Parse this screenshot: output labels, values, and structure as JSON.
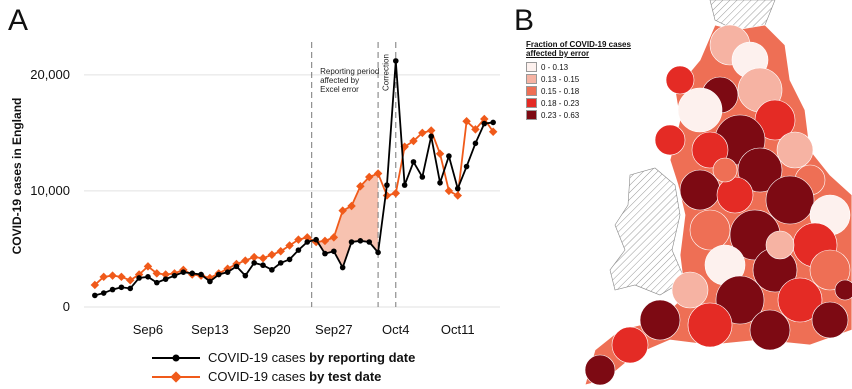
{
  "panel_a": {
    "letter": "A"
  },
  "panel_b": {
    "letter": "B"
  },
  "colors": {
    "reporting": "#000000",
    "test": "#f05a1a",
    "shade": "#f7c2b0",
    "grid": "#e2e2e2"
  },
  "chart_data": {
    "type": "line",
    "ylabel": "COVID-19 cases in England",
    "y_ticks": [
      "0",
      "10,000",
      "20,000"
    ],
    "ylim": [
      0,
      23000
    ],
    "x_ticks": [
      {
        "label": "Sep6",
        "day": 6
      },
      {
        "label": "Sep13",
        "day": 13
      },
      {
        "label": "Sep20",
        "day": 20
      },
      {
        "label": "Sep27",
        "day": 27
      },
      {
        "label": "Oct4",
        "day": 34
      },
      {
        "label": "Oct11",
        "day": 41
      }
    ],
    "x_range_days": [
      -1,
      46
    ],
    "grid": "horizontal",
    "annotations": [
      {
        "text": [
          "Reporting period",
          "affected by",
          "Excel error"
        ],
        "day": 25
      },
      {
        "text": [
          "Correction"
        ],
        "day": 32
      }
    ],
    "vertical_lines_days": [
      24.5,
      32,
      34
    ],
    "series": [
      {
        "name": "COVID-19 cases by reporting date",
        "x_days": [
          0,
          1,
          2,
          3,
          4,
          5,
          6,
          7,
          8,
          9,
          10,
          11,
          12,
          13,
          14,
          15,
          16,
          17,
          18,
          19,
          20,
          21,
          22,
          23,
          24,
          25,
          26,
          27,
          28,
          29,
          30,
          31,
          32,
          33,
          34,
          35,
          36,
          37,
          38,
          39,
          40,
          41,
          42,
          43,
          44,
          45
        ],
        "values": [
          1000,
          1200,
          1500,
          1700,
          1600,
          2500,
          2600,
          2100,
          2400,
          2700,
          3000,
          2900,
          2800,
          2200,
          2800,
          3000,
          3500,
          2700,
          3800,
          3600,
          3200,
          3800,
          4100,
          4900,
          5600,
          5800,
          4600,
          4800,
          3400,
          5600,
          5700,
          5600,
          4700,
          10500,
          21200,
          10500,
          12500,
          11200,
          14700,
          10700,
          13000,
          10200,
          12100,
          14100,
          15800,
          15900
        ]
      },
      {
        "name": "COVID-19 cases by test date",
        "x_days": [
          0,
          1,
          2,
          3,
          4,
          5,
          6,
          7,
          8,
          9,
          10,
          11,
          12,
          13,
          14,
          15,
          16,
          17,
          18,
          19,
          20,
          21,
          22,
          23,
          24,
          25,
          26,
          27,
          28,
          29,
          30,
          31,
          32,
          33,
          34,
          35,
          36,
          37,
          38,
          39,
          40,
          41,
          42,
          43,
          44,
          45
        ],
        "values": [
          1900,
          2600,
          2700,
          2600,
          2300,
          2800,
          3500,
          2900,
          2800,
          2900,
          3200,
          2800,
          2700,
          2500,
          2900,
          3300,
          3700,
          4000,
          4300,
          4200,
          4500,
          4800,
          5300,
          5800,
          6000,
          5600,
          5700,
          6000,
          8300,
          8700,
          10400,
          11200,
          11500,
          9600,
          9800,
          13800,
          14300,
          15000,
          15200,
          13200,
          10000,
          9600,
          16000,
          15300,
          16200,
          15100
        ]
      }
    ]
  },
  "map_legend": {
    "title": "Fraction of COVID-19 cases affected by error",
    "items": [
      {
        "label": "0 - 0.13",
        "color": "#fdf1ee"
      },
      {
        "label": "0.13 - 0.15",
        "color": "#f6b3a3"
      },
      {
        "label": "0.15 - 0.18",
        "color": "#ee6f55"
      },
      {
        "label": "0.18 - 0.23",
        "color": "#e42b25"
      },
      {
        "label": "0.23 - 0.63",
        "color": "#7d0a13"
      }
    ]
  }
}
